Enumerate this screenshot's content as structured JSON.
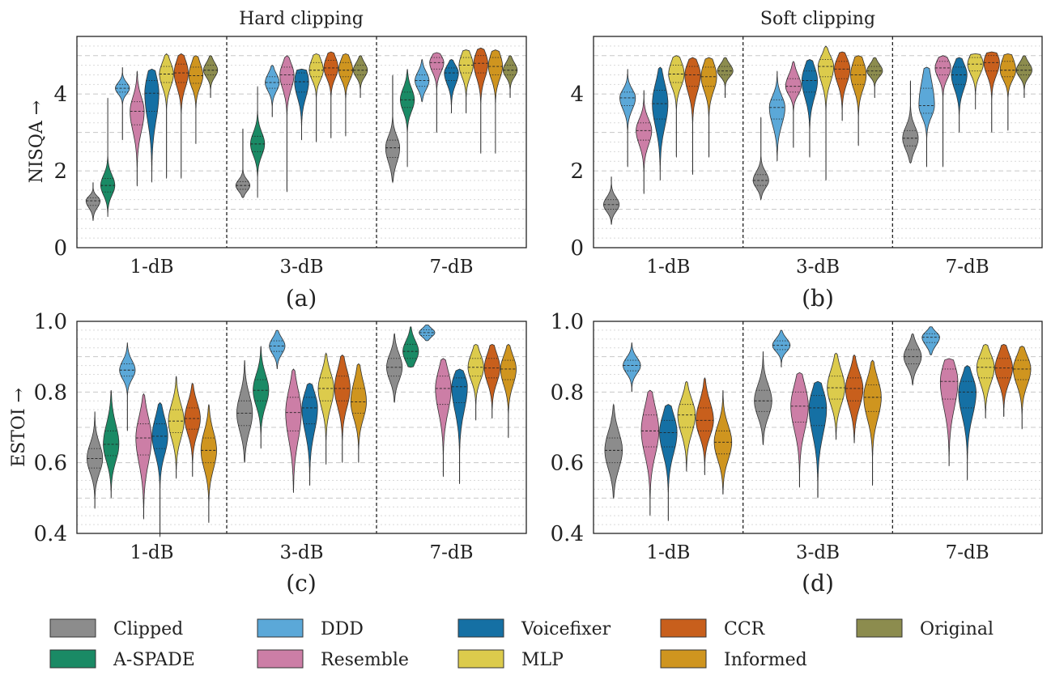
{
  "methods": [
    {
      "name": "Clipped",
      "color": "#8c8c8c"
    },
    {
      "name": "A-SPADE",
      "color": "#1a8a65"
    },
    {
      "name": "DDD",
      "color": "#5ba8d8"
    },
    {
      "name": "Resemble",
      "color": "#cc7ea6"
    },
    {
      "name": "Voicefixer",
      "color": "#1570a4"
    },
    {
      "name": "MLP",
      "color": "#dccb4c"
    },
    {
      "name": "CCR",
      "color": "#c85f1c"
    },
    {
      "name": "Informed",
      "color": "#cf951f"
    },
    {
      "name": "Original",
      "color": "#8c8c4e"
    }
  ],
  "groups": [
    "1-dB",
    "3-dB",
    "7-dB"
  ],
  "chart_data": [
    {
      "type": "violin",
      "panel": "(a)",
      "title": "Hard clipping",
      "ylabel": "NISQA →",
      "ylim": [
        0,
        5.5
      ],
      "yticks": [
        0,
        2,
        4
      ],
      "series": [
        {
          "name": "Clipped",
          "medians": [
            1.22,
            1.62,
            2.6
          ],
          "q1": [
            1.1,
            1.52,
            2.35
          ],
          "q3": [
            1.3,
            1.72,
            2.8
          ],
          "min": [
            0.7,
            1.3,
            1.7
          ],
          "max": [
            1.7,
            3.1,
            4.5
          ]
        },
        {
          "name": "A-SPADE",
          "medians": [
            1.62,
            2.7,
            3.85
          ],
          "q1": [
            1.45,
            2.5,
            3.65
          ],
          "q3": [
            1.8,
            2.9,
            4.05
          ],
          "min": [
            0.8,
            1.3,
            2.1
          ],
          "max": [
            3.9,
            4.2,
            4.65
          ]
        },
        {
          "name": "DDD",
          "medians": [
            4.15,
            4.3,
            4.35
          ],
          "q1": [
            4.05,
            4.15,
            4.2
          ],
          "q3": [
            4.25,
            4.45,
            4.5
          ],
          "min": [
            2.8,
            3.4,
            3.8
          ],
          "max": [
            4.7,
            4.75,
            4.9
          ]
        },
        {
          "name": "Resemble",
          "medians": [
            3.55,
            4.5,
            4.82
          ],
          "q1": [
            3.2,
            4.25,
            4.65
          ],
          "q3": [
            3.8,
            4.7,
            4.95
          ],
          "min": [
            1.6,
            1.45,
            3.0
          ],
          "max": [
            4.6,
            5.0,
            5.08
          ]
        },
        {
          "name": "Voicefixer",
          "medians": [
            4.02,
            4.32,
            4.55
          ],
          "q1": [
            3.55,
            4.05,
            4.35
          ],
          "q3": [
            4.35,
            4.55,
            4.68
          ],
          "min": [
            1.7,
            2.8,
            3.5
          ],
          "max": [
            4.65,
            4.65,
            4.9
          ]
        },
        {
          "name": "MLP",
          "medians": [
            4.52,
            4.62,
            4.75
          ],
          "q1": [
            4.3,
            4.45,
            4.55
          ],
          "q3": [
            4.72,
            4.82,
            4.95
          ],
          "min": [
            1.8,
            2.75,
            3.5
          ],
          "max": [
            5.05,
            5.05,
            5.15
          ]
        },
        {
          "name": "CCR",
          "medians": [
            4.55,
            4.68,
            4.8
          ],
          "q1": [
            4.3,
            4.5,
            4.55
          ],
          "q3": [
            4.78,
            4.88,
            5.0
          ],
          "min": [
            1.8,
            2.85,
            2.45
          ],
          "max": [
            5.05,
            5.1,
            5.2
          ]
        },
        {
          "name": "Informed",
          "medians": [
            4.48,
            4.62,
            4.72
          ],
          "q1": [
            4.28,
            4.45,
            4.5
          ],
          "q3": [
            4.7,
            4.82,
            4.95
          ],
          "min": [
            2.7,
            2.9,
            2.45
          ],
          "max": [
            5.0,
            5.05,
            5.15
          ]
        },
        {
          "name": "Original",
          "medians": [
            4.62,
            4.62,
            4.62
          ],
          "q1": [
            4.5,
            4.5,
            4.5
          ],
          "q3": [
            4.75,
            4.75,
            4.75
          ],
          "min": [
            3.9,
            3.9,
            3.9
          ],
          "max": [
            5.0,
            5.0,
            5.0
          ]
        }
      ]
    },
    {
      "type": "violin",
      "panel": "(b)",
      "title": "Soft clipping",
      "ylabel": "",
      "ylim": [
        0,
        5.5
      ],
      "yticks": [
        0,
        2,
        4
      ],
      "series": [
        {
          "name": "Clipped",
          "medians": [
            1.12,
            1.75,
            2.85
          ],
          "q1": [
            1.0,
            1.62,
            2.65
          ],
          "q3": [
            1.25,
            1.9,
            3.05
          ],
          "min": [
            0.6,
            1.25,
            2.2
          ],
          "max": [
            1.85,
            3.4,
            4.35
          ]
        },
        {
          "name": "DDD",
          "medians": [
            3.9,
            3.65,
            3.7
          ],
          "q1": [
            3.7,
            3.35,
            3.5
          ],
          "q3": [
            4.05,
            3.85,
            4.15
          ],
          "min": [
            2.1,
            2.25,
            2.1
          ],
          "max": [
            4.65,
            4.6,
            4.7
          ]
        },
        {
          "name": "Resemble",
          "medians": [
            3.05,
            4.2,
            4.68
          ],
          "q1": [
            2.8,
            4.05,
            4.5
          ],
          "q3": [
            3.25,
            4.4,
            4.85
          ],
          "min": [
            1.4,
            2.6,
            2.1
          ],
          "max": [
            4.1,
            4.85,
            5.0
          ]
        },
        {
          "name": "Voicefixer",
          "medians": [
            3.75,
            4.35,
            4.5
          ],
          "q1": [
            3.35,
            4.05,
            4.25
          ],
          "q3": [
            4.1,
            4.6,
            4.7
          ],
          "min": [
            1.75,
            2.35,
            3.0
          ],
          "max": [
            4.7,
            4.9,
            4.95
          ]
        },
        {
          "name": "MLP",
          "medians": [
            4.52,
            4.72,
            4.78
          ],
          "q1": [
            4.3,
            4.45,
            4.6
          ],
          "q3": [
            4.75,
            4.9,
            4.95
          ],
          "min": [
            2.35,
            1.75,
            3.6
          ],
          "max": [
            5.0,
            5.25,
            5.05
          ]
        },
        {
          "name": "CCR",
          "medians": [
            4.5,
            4.65,
            4.82
          ],
          "q1": [
            4.2,
            4.4,
            4.6
          ],
          "q3": [
            4.72,
            4.85,
            5.0
          ],
          "min": [
            1.9,
            3.3,
            3.0
          ],
          "max": [
            4.95,
            5.1,
            5.1
          ]
        },
        {
          "name": "Informed",
          "medians": [
            4.45,
            4.5,
            4.62
          ],
          "q1": [
            4.2,
            4.25,
            4.45
          ],
          "q3": [
            4.7,
            4.75,
            4.85
          ],
          "min": [
            2.35,
            2.65,
            3.05
          ],
          "max": [
            4.95,
            5.0,
            5.05
          ]
        },
        {
          "name": "Original",
          "medians": [
            4.6,
            4.6,
            4.62
          ],
          "q1": [
            4.5,
            4.5,
            4.5
          ],
          "q3": [
            4.72,
            4.72,
            4.75
          ],
          "min": [
            3.9,
            3.9,
            3.9
          ],
          "max": [
            4.95,
            4.95,
            5.0
          ]
        }
      ]
    },
    {
      "type": "violin",
      "panel": "(c)",
      "title": "",
      "ylabel": "ESTOI →",
      "ylim": [
        0.4,
        1.0
      ],
      "yticks": [
        0.4,
        0.6,
        0.8,
        1.0
      ],
      "series": [
        {
          "name": "Clipped",
          "medians": [
            0.612,
            0.74,
            0.87
          ],
          "q1": [
            0.585,
            0.705,
            0.845
          ],
          "q3": [
            0.64,
            0.775,
            0.895
          ],
          "min": [
            0.47,
            0.6,
            0.77
          ],
          "max": [
            0.745,
            0.89,
            0.965
          ]
        },
        {
          "name": "A-SPADE",
          "medians": [
            0.652,
            0.805,
            0.915
          ],
          "q1": [
            0.62,
            0.775,
            0.895
          ],
          "q3": [
            0.69,
            0.835,
            0.935
          ],
          "min": [
            0.5,
            0.64,
            0.87
          ],
          "max": [
            0.805,
            0.93,
            0.985
          ]
        },
        {
          "name": "DDD",
          "medians": [
            0.862,
            0.93,
            0.968
          ],
          "q1": [
            0.845,
            0.915,
            0.96
          ],
          "q3": [
            0.88,
            0.945,
            0.976
          ],
          "min": [
            0.69,
            0.865,
            0.945
          ],
          "max": [
            0.94,
            0.975,
            0.99
          ]
        },
        {
          "name": "Resemble",
          "medians": [
            0.67,
            0.742,
            0.81
          ],
          "q1": [
            0.622,
            0.69,
            0.765
          ],
          "q3": [
            0.71,
            0.785,
            0.845
          ],
          "min": [
            0.44,
            0.515,
            0.56
          ],
          "max": [
            0.795,
            0.865,
            0.895
          ]
        },
        {
          "name": "Voicefixer",
          "medians": [
            0.675,
            0.755,
            0.815
          ],
          "q1": [
            0.64,
            0.71,
            0.77
          ],
          "q3": [
            0.71,
            0.785,
            0.84
          ],
          "min": [
            0.39,
            0.535,
            0.54
          ],
          "max": [
            0.77,
            0.825,
            0.865
          ]
        },
        {
          "name": "MLP",
          "medians": [
            0.718,
            0.81,
            0.87
          ],
          "q1": [
            0.685,
            0.775,
            0.845
          ],
          "q3": [
            0.75,
            0.84,
            0.895
          ],
          "min": [
            0.555,
            0.595,
            0.72
          ],
          "max": [
            0.845,
            0.91,
            0.935
          ]
        },
        {
          "name": "CCR",
          "medians": [
            0.725,
            0.81,
            0.868
          ],
          "q1": [
            0.695,
            0.775,
            0.84
          ],
          "q3": [
            0.755,
            0.845,
            0.895
          ],
          "min": [
            0.56,
            0.6,
            0.725
          ],
          "max": [
            0.825,
            0.905,
            0.935
          ]
        },
        {
          "name": "Informed",
          "medians": [
            0.635,
            0.772,
            0.865
          ],
          "q1": [
            0.6,
            0.74,
            0.835
          ],
          "q3": [
            0.67,
            0.81,
            0.89
          ],
          "min": [
            0.43,
            0.6,
            0.67
          ],
          "max": [
            0.765,
            0.88,
            0.935
          ]
        }
      ]
    },
    {
      "type": "violin",
      "panel": "(d)",
      "title": "",
      "ylabel": "",
      "ylim": [
        0.4,
        1.0
      ],
      "yticks": [
        0.4,
        0.6,
        0.8,
        1.0
      ],
      "series": [
        {
          "name": "Clipped",
          "medians": [
            0.635,
            0.775,
            0.9
          ],
          "q1": [
            0.6,
            0.745,
            0.88
          ],
          "q3": [
            0.67,
            0.805,
            0.92
          ],
          "min": [
            0.5,
            0.65,
            0.82
          ],
          "max": [
            0.765,
            0.915,
            0.965
          ]
        },
        {
          "name": "DDD",
          "medians": [
            0.875,
            0.932,
            0.955
          ],
          "q1": [
            0.86,
            0.92,
            0.94
          ],
          "q3": [
            0.89,
            0.945,
            0.965
          ],
          "min": [
            0.8,
            0.87,
            0.905
          ],
          "max": [
            0.94,
            0.975,
            0.985
          ]
        },
        {
          "name": "Resemble",
          "medians": [
            0.69,
            0.76,
            0.83
          ],
          "q1": [
            0.645,
            0.715,
            0.78
          ],
          "q3": [
            0.735,
            0.8,
            0.865
          ],
          "min": [
            0.45,
            0.53,
            0.59
          ],
          "max": [
            0.805,
            0.855,
            0.895
          ]
        },
        {
          "name": "Voicefixer",
          "medians": [
            0.685,
            0.755,
            0.8
          ],
          "q1": [
            0.645,
            0.705,
            0.755
          ],
          "q3": [
            0.72,
            0.79,
            0.83
          ],
          "min": [
            0.435,
            0.5,
            0.55
          ],
          "max": [
            0.765,
            0.83,
            0.875
          ]
        },
        {
          "name": "MLP",
          "medians": [
            0.735,
            0.812,
            0.87
          ],
          "q1": [
            0.7,
            0.78,
            0.84
          ],
          "q3": [
            0.765,
            0.845,
            0.895
          ],
          "min": [
            0.575,
            0.665,
            0.725
          ],
          "max": [
            0.83,
            0.91,
            0.935
          ]
        },
        {
          "name": "CCR",
          "medians": [
            0.72,
            0.81,
            0.868
          ],
          "q1": [
            0.69,
            0.775,
            0.84
          ],
          "q3": [
            0.755,
            0.84,
            0.895
          ],
          "min": [
            0.565,
            0.655,
            0.73
          ],
          "max": [
            0.84,
            0.905,
            0.935
          ]
        },
        {
          "name": "Informed",
          "medians": [
            0.658,
            0.785,
            0.865
          ],
          "q1": [
            0.625,
            0.745,
            0.835
          ],
          "q3": [
            0.69,
            0.82,
            0.89
          ],
          "min": [
            0.51,
            0.535,
            0.695
          ],
          "max": [
            0.805,
            0.89,
            0.93
          ]
        }
      ]
    }
  ]
}
